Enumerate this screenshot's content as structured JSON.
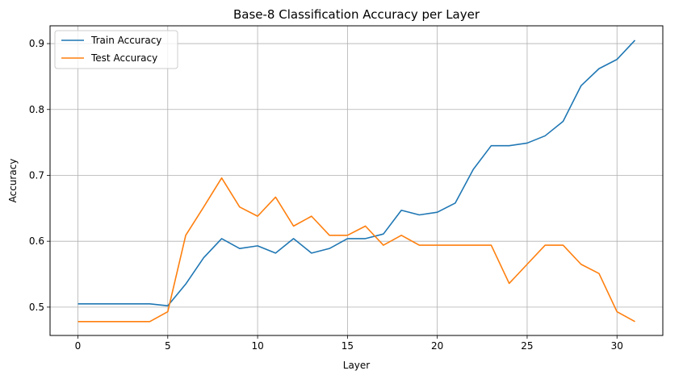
{
  "chart_data": {
    "type": "line",
    "title": "Base-8 Classification Accuracy per Layer",
    "xlabel": "Layer",
    "ylabel": "Accuracy",
    "xlim": [
      -1.55,
      32.55
    ],
    "ylim": [
      0.457,
      0.927
    ],
    "xticks": [
      0,
      5,
      10,
      15,
      20,
      25,
      30
    ],
    "yticks": [
      0.5,
      0.6,
      0.7,
      0.8,
      0.9
    ],
    "grid": true,
    "legend_position": "top-left",
    "x": [
      0,
      1,
      2,
      3,
      4,
      5,
      6,
      7,
      8,
      9,
      10,
      11,
      12,
      13,
      14,
      15,
      16,
      17,
      18,
      19,
      20,
      21,
      22,
      23,
      24,
      25,
      26,
      27,
      28,
      29,
      30,
      31
    ],
    "series": [
      {
        "name": "Train Accuracy",
        "color": "#1f77b4",
        "values": [
          0.505,
          0.505,
          0.505,
          0.505,
          0.505,
          0.502,
          0.535,
          0.575,
          0.604,
          0.589,
          0.593,
          0.582,
          0.604,
          0.582,
          0.589,
          0.604,
          0.604,
          0.611,
          0.647,
          0.64,
          0.644,
          0.658,
          0.709,
          0.745,
          0.745,
          0.749,
          0.76,
          0.782,
          0.836,
          0.862,
          0.876,
          0.905
        ]
      },
      {
        "name": "Test Accuracy",
        "color": "#ff7f0e",
        "values": [
          0.478,
          0.478,
          0.478,
          0.478,
          0.478,
          0.493,
          0.609,
          0.652,
          0.696,
          0.652,
          0.638,
          0.667,
          0.623,
          0.638,
          0.609,
          0.609,
          0.623,
          0.594,
          0.609,
          0.594,
          0.594,
          0.594,
          0.594,
          0.594,
          0.536,
          0.565,
          0.594,
          0.594,
          0.565,
          0.551,
          0.493,
          0.478
        ]
      }
    ]
  }
}
